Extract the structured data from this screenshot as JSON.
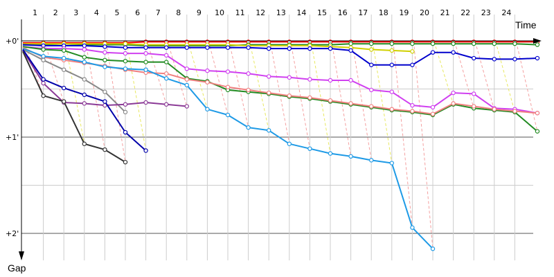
{
  "chart_data": {
    "type": "line",
    "xlabel": "Time",
    "ylabel": "Gap",
    "x_ticks": [
      "1",
      "2",
      "3",
      "4",
      "5",
      "6",
      "7",
      "8",
      "9",
      "10",
      "11",
      "12",
      "13",
      "14",
      "15",
      "16",
      "17",
      "18",
      "19",
      "20",
      "21",
      "22",
      "23",
      "24"
    ],
    "y_ticks": [
      {
        "value": 0,
        "label": "+0'"
      },
      {
        "value": 1,
        "label": "+1'"
      },
      {
        "value": 2,
        "label": "+2'"
      }
    ],
    "xlim": [
      0,
      25.2
    ],
    "ylim": [
      -0.2,
      2.3
    ],
    "grid": true,
    "series": [
      {
        "color": "#ff0000",
        "values": [
          [
            0,
            0.02
          ],
          [
            1,
            0.02
          ],
          [
            2,
            0.02
          ],
          [
            3,
            0.02
          ],
          [
            4,
            0.02
          ],
          [
            5,
            0.02
          ],
          [
            6,
            0.01
          ],
          [
            7,
            0.01
          ],
          [
            8,
            0.01
          ],
          [
            9,
            0.01
          ],
          [
            10,
            0.01
          ],
          [
            11,
            0.01
          ],
          [
            12,
            0.01
          ],
          [
            13,
            0.01
          ],
          [
            14,
            0.01
          ],
          [
            15,
            0.01
          ],
          [
            16,
            0.01
          ],
          [
            17,
            0.01
          ],
          [
            18,
            0.01
          ],
          [
            19,
            0.01
          ],
          [
            20,
            0.01
          ],
          [
            21,
            0.01
          ],
          [
            22,
            0.01
          ],
          [
            23,
            0.01
          ],
          [
            24,
            0.01
          ],
          [
            25.1,
            0.01
          ]
        ]
      },
      {
        "color": "#228b22",
        "values": [
          [
            0,
            0.04
          ],
          [
            1,
            0.04
          ],
          [
            2,
            0.05
          ],
          [
            3,
            0.04
          ],
          [
            4,
            0.04
          ],
          [
            5,
            0.04
          ],
          [
            6,
            0.05
          ],
          [
            7,
            0.05
          ],
          [
            8,
            0.05
          ],
          [
            9,
            0.05
          ],
          [
            10,
            0.05
          ],
          [
            11,
            0.04
          ],
          [
            12,
            0.04
          ],
          [
            13,
            0.04
          ],
          [
            14,
            0.04
          ],
          [
            15,
            0.04
          ],
          [
            16,
            0.03
          ],
          [
            17,
            0.03
          ],
          [
            18,
            0.03
          ],
          [
            19,
            0.03
          ],
          [
            20,
            0.03
          ],
          [
            21,
            0.03
          ],
          [
            22,
            0.03
          ],
          [
            23,
            0.03
          ],
          [
            24,
            0.03
          ],
          [
            25.1,
            0.04
          ]
        ]
      },
      {
        "color": "#d0d000",
        "values": [
          [
            0,
            0.03
          ],
          [
            1,
            0.03
          ],
          [
            2,
            0.03
          ],
          [
            3,
            0.03
          ],
          [
            4,
            0.03
          ],
          [
            5,
            0.03
          ],
          [
            6,
            0.04
          ],
          [
            7,
            0.04
          ],
          [
            8,
            0.04
          ],
          [
            9,
            0.04
          ],
          [
            10,
            0.04
          ],
          [
            11,
            0.05
          ],
          [
            12,
            0.05
          ],
          [
            13,
            0.05
          ],
          [
            14,
            0.05
          ],
          [
            15,
            0.06
          ],
          [
            16,
            0.07
          ],
          [
            17,
            0.09
          ],
          [
            18,
            0.1
          ],
          [
            19,
            0.11
          ]
        ]
      },
      {
        "color": "#0000cc",
        "values": [
          [
            0,
            0.04
          ],
          [
            1,
            0.05
          ],
          [
            2,
            0.05
          ],
          [
            3,
            0.05
          ],
          [
            4,
            0.06
          ],
          [
            5,
            0.07
          ],
          [
            6,
            0.07
          ],
          [
            7,
            0.07
          ],
          [
            8,
            0.07
          ],
          [
            9,
            0.07
          ],
          [
            10,
            0.07
          ],
          [
            11,
            0.07
          ],
          [
            12,
            0.08
          ],
          [
            13,
            0.08
          ],
          [
            14,
            0.08
          ],
          [
            15,
            0.08
          ],
          [
            16,
            0.1
          ],
          [
            17,
            0.25
          ],
          [
            18,
            0.25
          ],
          [
            19,
            0.25
          ],
          [
            20,
            0.12
          ],
          [
            21,
            0.12
          ],
          [
            22,
            0.18
          ],
          [
            23,
            0.19
          ],
          [
            24,
            0.19
          ],
          [
            25.1,
            0.18
          ]
        ]
      },
      {
        "color": "#d040f0",
        "values": [
          [
            0,
            0.06
          ],
          [
            1,
            0.08
          ],
          [
            2,
            0.08
          ],
          [
            3,
            0.09
          ],
          [
            4,
            0.12
          ],
          [
            5,
            0.13
          ],
          [
            6,
            0.13
          ],
          [
            7,
            0.15
          ],
          [
            8,
            0.29
          ],
          [
            9,
            0.31
          ],
          [
            10,
            0.32
          ],
          [
            11,
            0.34
          ],
          [
            12,
            0.37
          ],
          [
            13,
            0.38
          ],
          [
            14,
            0.4
          ],
          [
            15,
            0.41
          ],
          [
            16,
            0.41
          ],
          [
            17,
            0.51
          ],
          [
            18,
            0.53
          ],
          [
            19,
            0.67
          ],
          [
            20,
            0.69
          ],
          [
            21,
            0.54
          ],
          [
            22,
            0.55
          ],
          [
            23,
            0.7
          ],
          [
            24,
            0.71
          ],
          [
            25.1,
            0.75
          ]
        ]
      },
      {
        "color": "#228b22",
        "values": [
          [
            0,
            0.06
          ],
          [
            1,
            0.09
          ],
          [
            2,
            0.1
          ],
          [
            3,
            0.17
          ],
          [
            4,
            0.2
          ],
          [
            5,
            0.21
          ],
          [
            6,
            0.22
          ],
          [
            7,
            0.22
          ],
          [
            8,
            0.39
          ],
          [
            9,
            0.42
          ],
          [
            10,
            0.51
          ],
          [
            11,
            0.53
          ],
          [
            12,
            0.55
          ],
          [
            13,
            0.58
          ],
          [
            14,
            0.6
          ],
          [
            15,
            0.63
          ],
          [
            16,
            0.66
          ],
          [
            17,
            0.69
          ],
          [
            18,
            0.72
          ],
          [
            19,
            0.74
          ],
          [
            20,
            0.77
          ],
          [
            21,
            0.66
          ],
          [
            22,
            0.7
          ],
          [
            23,
            0.72
          ],
          [
            24,
            0.74
          ],
          [
            25.1,
            0.94
          ]
        ]
      },
      {
        "color": "#f08080",
        "values": [
          [
            0,
            0.07
          ],
          [
            1,
            0.17
          ],
          [
            2,
            0.2
          ],
          [
            3,
            0.23
          ],
          [
            4,
            0.26
          ],
          [
            5,
            0.3
          ],
          [
            6,
            0.33
          ],
          [
            7,
            0.34
          ],
          [
            8,
            0.4
          ],
          [
            9,
            0.43
          ],
          [
            10,
            0.48
          ],
          [
            11,
            0.51
          ],
          [
            12,
            0.54
          ],
          [
            13,
            0.57
          ],
          [
            14,
            0.59
          ],
          [
            15,
            0.62
          ],
          [
            16,
            0.65
          ],
          [
            17,
            0.68
          ],
          [
            18,
            0.71
          ],
          [
            19,
            0.73
          ],
          [
            20,
            0.76
          ],
          [
            21,
            0.65
          ],
          [
            22,
            0.68
          ],
          [
            23,
            0.71
          ],
          [
            24,
            0.73
          ],
          [
            25.1,
            0.75
          ]
        ]
      },
      {
        "color": "#1e9ae6",
        "values": [
          [
            0,
            0.08
          ],
          [
            1,
            0.16
          ],
          [
            2,
            0.18
          ],
          [
            3,
            0.22
          ],
          [
            4,
            0.27
          ],
          [
            5,
            0.29
          ],
          [
            6,
            0.3
          ],
          [
            7,
            0.39
          ],
          [
            8,
            0.46
          ],
          [
            9,
            0.71
          ],
          [
            10,
            0.77
          ],
          [
            11,
            0.9
          ],
          [
            12,
            0.93
          ],
          [
            13,
            1.07
          ],
          [
            14,
            1.12
          ],
          [
            15,
            1.17
          ],
          [
            16,
            1.2
          ],
          [
            17,
            1.24
          ],
          [
            18,
            1.27
          ],
          [
            19,
            1.94
          ],
          [
            20,
            2.16
          ]
        ]
      },
      {
        "color": "#888888",
        "values": [
          [
            0,
            0.09
          ],
          [
            1,
            0.2
          ],
          [
            2,
            0.3
          ],
          [
            3,
            0.4
          ],
          [
            4,
            0.53
          ],
          [
            5,
            0.74
          ]
        ]
      },
      {
        "color": "#8b3a96",
        "values": [
          [
            0,
            0.1
          ],
          [
            1,
            0.44
          ],
          [
            2,
            0.64
          ],
          [
            3,
            0.65
          ],
          [
            4,
            0.67
          ],
          [
            5,
            0.66
          ],
          [
            6,
            0.64
          ],
          [
            7,
            0.66
          ],
          [
            8,
            0.68
          ]
        ]
      },
      {
        "color": "#0000aa",
        "values": [
          [
            0,
            0.09
          ],
          [
            1,
            0.4
          ],
          [
            2,
            0.49
          ],
          [
            3,
            0.56
          ],
          [
            4,
            0.63
          ],
          [
            5,
            0.95
          ],
          [
            6,
            1.14
          ]
        ]
      },
      {
        "color": "#333333",
        "values": [
          [
            0,
            0.11
          ],
          [
            1,
            0.57
          ],
          [
            2,
            0.63
          ],
          [
            3,
            1.07
          ],
          [
            4,
            1.13
          ],
          [
            5,
            1.26
          ]
        ]
      }
    ]
  }
}
